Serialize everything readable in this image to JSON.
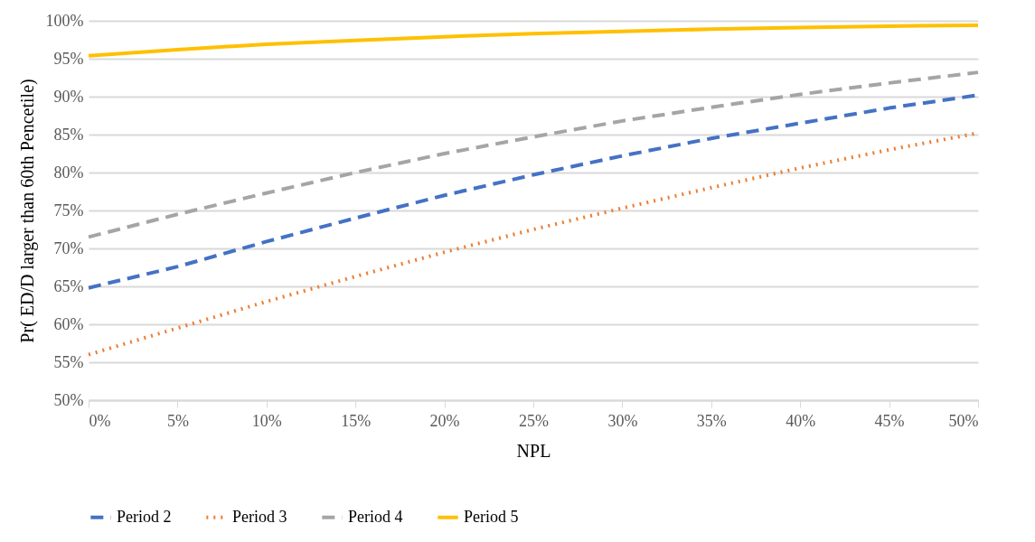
{
  "chart_data": {
    "type": "line",
    "xlabel": "NPL",
    "ylabel": "Pr( ED/D larger than 60th  Pencetile)",
    "x": [
      0,
      5,
      10,
      15,
      20,
      25,
      30,
      35,
      40,
      45,
      50
    ],
    "series": [
      {
        "name": "Period 2",
        "color": "#4472c4",
        "line_style": "dashed",
        "values": [
          64.8,
          67.6,
          70.9,
          74.0,
          77.0,
          79.7,
          82.2,
          84.5,
          86.5,
          88.5,
          90.2
        ]
      },
      {
        "name": "Period 3",
        "color": "#ed7d31",
        "line_style": "dotted",
        "values": [
          56.0,
          59.5,
          63.0,
          66.3,
          69.5,
          72.5,
          75.3,
          78.0,
          80.6,
          83.0,
          85.2
        ]
      },
      {
        "name": "Period 4",
        "color": "#a5a5a5",
        "line_style": "dashed",
        "values": [
          71.5,
          74.5,
          77.3,
          80.0,
          82.5,
          84.7,
          86.8,
          88.6,
          90.3,
          91.8,
          93.2
        ]
      },
      {
        "name": "Period 5",
        "color": "#ffc000",
        "line_style": "solid",
        "values": [
          95.4,
          96.2,
          96.9,
          97.4,
          97.9,
          98.3,
          98.6,
          98.9,
          99.1,
          99.3,
          99.4
        ]
      }
    ],
    "xlim": [
      0,
      50
    ],
    "xticks": [
      {
        "value": 0,
        "label": "0%"
      },
      {
        "value": 5,
        "label": "5%"
      },
      {
        "value": 10,
        "label": "10%"
      },
      {
        "value": 15,
        "label": "15%"
      },
      {
        "value": 20,
        "label": "20%"
      },
      {
        "value": 25,
        "label": "25%"
      },
      {
        "value": 30,
        "label": "30%"
      },
      {
        "value": 35,
        "label": "35%"
      },
      {
        "value": 40,
        "label": "40%"
      },
      {
        "value": 45,
        "label": "45%"
      },
      {
        "value": 50,
        "label": "50%"
      }
    ],
    "ylim": [
      50,
      100
    ],
    "yticks": [
      {
        "value": 50,
        "label": "50%"
      },
      {
        "value": 55,
        "label": "55%"
      },
      {
        "value": 60,
        "label": "60%"
      },
      {
        "value": 65,
        "label": "65%"
      },
      {
        "value": 70,
        "label": "70%"
      },
      {
        "value": 75,
        "label": "75%"
      },
      {
        "value": 80,
        "label": "80%"
      },
      {
        "value": 85,
        "label": "85%"
      },
      {
        "value": 90,
        "label": "90%"
      },
      {
        "value": 95,
        "label": "95%"
      },
      {
        "value": 100,
        "label": "100%"
      }
    ],
    "grid": "y",
    "legend": "bottom",
    "marker": "none"
  }
}
